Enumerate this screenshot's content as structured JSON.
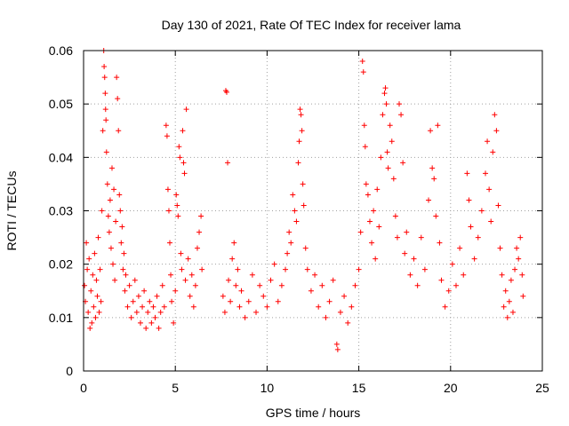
{
  "chart_data": {
    "type": "scatter",
    "title": "Day 130 of 2021, Rate Of TEC Index for receiver lama",
    "xlabel": "GPS time / hours",
    "ylabel": "ROTI / TECUs",
    "xlim": [
      0,
      25
    ],
    "ylim": [
      0,
      0.06
    ],
    "x_ticks": [
      0,
      5,
      10,
      15,
      20,
      25
    ],
    "x_tick_labels": [
      "0",
      "5",
      "10",
      "15",
      "20",
      "25"
    ],
    "y_ticks": [
      0,
      0.01,
      0.02,
      0.03,
      0.04,
      0.05,
      0.06
    ],
    "y_tick_labels": [
      "0",
      "0.01",
      "0.02",
      "0.03",
      "0.04",
      "0.05",
      "0.06"
    ],
    "grid": true,
    "marker": "+",
    "color": "#ff0000",
    "series": [
      {
        "points": [
          [
            0.05,
            0.016
          ],
          [
            0.1,
            0.013
          ],
          [
            0.15,
            0.024
          ],
          [
            0.2,
            0.019
          ],
          [
            0.25,
            0.011
          ],
          [
            0.3,
            0.021
          ],
          [
            0.35,
            0.008
          ],
          [
            0.4,
            0.015
          ],
          [
            0.45,
            0.009
          ],
          [
            0.5,
            0.018
          ],
          [
            0.55,
            0.012
          ],
          [
            0.6,
            0.022
          ],
          [
            0.65,
            0.01
          ],
          [
            0.7,
            0.017
          ],
          [
            0.75,
            0.014
          ],
          [
            0.8,
            0.025
          ],
          [
            0.85,
            0.011
          ],
          [
            0.9,
            0.019
          ],
          [
            0.95,
            0.013
          ],
          [
            1.0,
            0.03
          ],
          [
            1.05,
            0.045
          ],
          [
            1.1,
            0.06
          ],
          [
            1.12,
            0.057
          ],
          [
            1.15,
            0.055
          ],
          [
            1.18,
            0.052
          ],
          [
            1.2,
            0.049
          ],
          [
            1.22,
            0.047
          ],
          [
            1.25,
            0.041
          ],
          [
            1.3,
            0.035
          ],
          [
            1.35,
            0.029
          ],
          [
            1.4,
            0.026
          ],
          [
            1.45,
            0.032
          ],
          [
            1.5,
            0.023
          ],
          [
            1.55,
            0.038
          ],
          [
            1.6,
            0.02
          ],
          [
            1.65,
            0.034
          ],
          [
            1.7,
            0.017
          ],
          [
            1.75,
            0.028
          ],
          [
            1.8,
            0.055
          ],
          [
            1.85,
            0.051
          ],
          [
            1.9,
            0.045
          ],
          [
            1.95,
            0.033
          ],
          [
            2.0,
            0.03
          ],
          [
            2.05,
            0.024
          ],
          [
            2.1,
            0.027
          ],
          [
            2.15,
            0.019
          ],
          [
            2.2,
            0.022
          ],
          [
            2.25,
            0.015
          ],
          [
            2.3,
            0.018
          ],
          [
            2.4,
            0.012
          ],
          [
            2.5,
            0.016
          ],
          [
            2.6,
            0.01
          ],
          [
            2.7,
            0.013
          ],
          [
            2.8,
            0.017
          ],
          [
            2.9,
            0.011
          ],
          [
            3.0,
            0.014
          ],
          [
            3.1,
            0.009
          ],
          [
            3.2,
            0.012
          ],
          [
            3.3,
            0.015
          ],
          [
            3.4,
            0.008
          ],
          [
            3.5,
            0.011
          ],
          [
            3.6,
            0.013
          ],
          [
            3.7,
            0.009
          ],
          [
            3.8,
            0.012
          ],
          [
            3.9,
            0.01
          ],
          [
            4.0,
            0.014
          ],
          [
            4.1,
            0.008
          ],
          [
            4.2,
            0.011
          ],
          [
            4.3,
            0.016
          ],
          [
            4.4,
            0.012
          ],
          [
            4.5,
            0.046
          ],
          [
            4.55,
            0.044
          ],
          [
            4.6,
            0.034
          ],
          [
            4.65,
            0.03
          ],
          [
            4.7,
            0.024
          ],
          [
            4.75,
            0.018
          ],
          [
            4.8,
            0.013
          ],
          [
            4.9,
            0.009
          ],
          [
            5.0,
            0.015
          ],
          [
            5.05,
            0.033
          ],
          [
            5.1,
            0.031
          ],
          [
            5.15,
            0.029
          ],
          [
            5.2,
            0.042
          ],
          [
            5.25,
            0.04
          ],
          [
            5.3,
            0.022
          ],
          [
            5.35,
            0.019
          ],
          [
            5.4,
            0.045
          ],
          [
            5.45,
            0.039
          ],
          [
            5.5,
            0.037
          ],
          [
            5.55,
            0.017
          ],
          [
            5.6,
            0.049
          ],
          [
            5.7,
            0.021
          ],
          [
            5.8,
            0.014
          ],
          [
            5.9,
            0.018
          ],
          [
            6.0,
            0.012
          ],
          [
            6.1,
            0.016
          ],
          [
            6.2,
            0.023
          ],
          [
            6.3,
            0.026
          ],
          [
            6.4,
            0.029
          ],
          [
            6.45,
            0.019
          ],
          [
            7.6,
            0.014
          ],
          [
            7.7,
            0.011
          ],
          [
            7.75,
            0.0525
          ],
          [
            7.8,
            0.0522
          ],
          [
            7.85,
            0.039
          ],
          [
            7.9,
            0.017
          ],
          [
            8.0,
            0.013
          ],
          [
            8.1,
            0.021
          ],
          [
            8.2,
            0.024
          ],
          [
            8.3,
            0.016
          ],
          [
            8.4,
            0.019
          ],
          [
            8.5,
            0.012
          ],
          [
            8.6,
            0.015
          ],
          [
            8.8,
            0.01
          ],
          [
            9.0,
            0.013
          ],
          [
            9.2,
            0.018
          ],
          [
            9.4,
            0.011
          ],
          [
            9.6,
            0.016
          ],
          [
            9.8,
            0.014
          ],
          [
            10.0,
            0.012
          ],
          [
            10.2,
            0.017
          ],
          [
            10.4,
            0.02
          ],
          [
            10.6,
            0.013
          ],
          [
            10.8,
            0.016
          ],
          [
            11.0,
            0.019
          ],
          [
            11.1,
            0.022
          ],
          [
            11.2,
            0.026
          ],
          [
            11.3,
            0.024
          ],
          [
            11.4,
            0.033
          ],
          [
            11.5,
            0.03
          ],
          [
            11.6,
            0.028
          ],
          [
            11.7,
            0.039
          ],
          [
            11.75,
            0.043
          ],
          [
            11.8,
            0.049
          ],
          [
            11.85,
            0.048
          ],
          [
            11.9,
            0.045
          ],
          [
            11.95,
            0.035
          ],
          [
            12.0,
            0.031
          ],
          [
            12.1,
            0.023
          ],
          [
            12.2,
            0.019
          ],
          [
            12.4,
            0.015
          ],
          [
            12.6,
            0.018
          ],
          [
            12.8,
            0.012
          ],
          [
            13.0,
            0.016
          ],
          [
            13.2,
            0.01
          ],
          [
            13.4,
            0.013
          ],
          [
            13.6,
            0.017
          ],
          [
            13.8,
            0.005
          ],
          [
            13.85,
            0.004
          ],
          [
            14.0,
            0.011
          ],
          [
            14.2,
            0.014
          ],
          [
            14.4,
            0.009
          ],
          [
            14.6,
            0.012
          ],
          [
            14.8,
            0.016
          ],
          [
            15.0,
            0.019
          ],
          [
            15.1,
            0.026
          ],
          [
            15.2,
            0.058
          ],
          [
            15.25,
            0.056
          ],
          [
            15.3,
            0.046
          ],
          [
            15.35,
            0.042
          ],
          [
            15.4,
            0.035
          ],
          [
            15.5,
            0.033
          ],
          [
            15.6,
            0.028
          ],
          [
            15.7,
            0.024
          ],
          [
            15.8,
            0.03
          ],
          [
            15.9,
            0.021
          ],
          [
            16.0,
            0.034
          ],
          [
            16.1,
            0.027
          ],
          [
            16.2,
            0.04
          ],
          [
            16.3,
            0.048
          ],
          [
            16.4,
            0.052
          ],
          [
            16.45,
            0.053
          ],
          [
            16.5,
            0.05
          ],
          [
            16.55,
            0.041
          ],
          [
            16.6,
            0.038
          ],
          [
            16.7,
            0.046
          ],
          [
            16.8,
            0.043
          ],
          [
            16.9,
            0.036
          ],
          [
            17.0,
            0.029
          ],
          [
            17.1,
            0.025
          ],
          [
            17.2,
            0.05
          ],
          [
            17.3,
            0.048
          ],
          [
            17.4,
            0.039
          ],
          [
            17.5,
            0.022
          ],
          [
            17.6,
            0.026
          ],
          [
            17.8,
            0.018
          ],
          [
            18.0,
            0.021
          ],
          [
            18.2,
            0.016
          ],
          [
            18.4,
            0.025
          ],
          [
            18.6,
            0.019
          ],
          [
            18.8,
            0.032
          ],
          [
            18.9,
            0.045
          ],
          [
            19.0,
            0.038
          ],
          [
            19.1,
            0.036
          ],
          [
            19.2,
            0.029
          ],
          [
            19.3,
            0.046
          ],
          [
            19.4,
            0.024
          ],
          [
            19.5,
            0.017
          ],
          [
            19.7,
            0.012
          ],
          [
            19.9,
            0.015
          ],
          [
            20.1,
            0.02
          ],
          [
            20.3,
            0.016
          ],
          [
            20.5,
            0.023
          ],
          [
            20.7,
            0.018
          ],
          [
            20.9,
            0.037
          ],
          [
            21.0,
            0.032
          ],
          [
            21.1,
            0.027
          ],
          [
            21.3,
            0.021
          ],
          [
            21.5,
            0.025
          ],
          [
            21.7,
            0.03
          ],
          [
            21.9,
            0.037
          ],
          [
            22.0,
            0.043
          ],
          [
            22.1,
            0.034
          ],
          [
            22.2,
            0.028
          ],
          [
            22.3,
            0.041
          ],
          [
            22.4,
            0.048
          ],
          [
            22.5,
            0.045
          ],
          [
            22.6,
            0.031
          ],
          [
            22.7,
            0.023
          ],
          [
            22.8,
            0.018
          ],
          [
            22.9,
            0.012
          ],
          [
            23.0,
            0.015
          ],
          [
            23.1,
            0.01
          ],
          [
            23.2,
            0.013
          ],
          [
            23.3,
            0.017
          ],
          [
            23.4,
            0.011
          ],
          [
            23.5,
            0.019
          ],
          [
            23.6,
            0.023
          ],
          [
            23.7,
            0.021
          ],
          [
            23.8,
            0.025
          ],
          [
            23.9,
            0.018
          ],
          [
            23.95,
            0.014
          ]
        ]
      }
    ]
  }
}
